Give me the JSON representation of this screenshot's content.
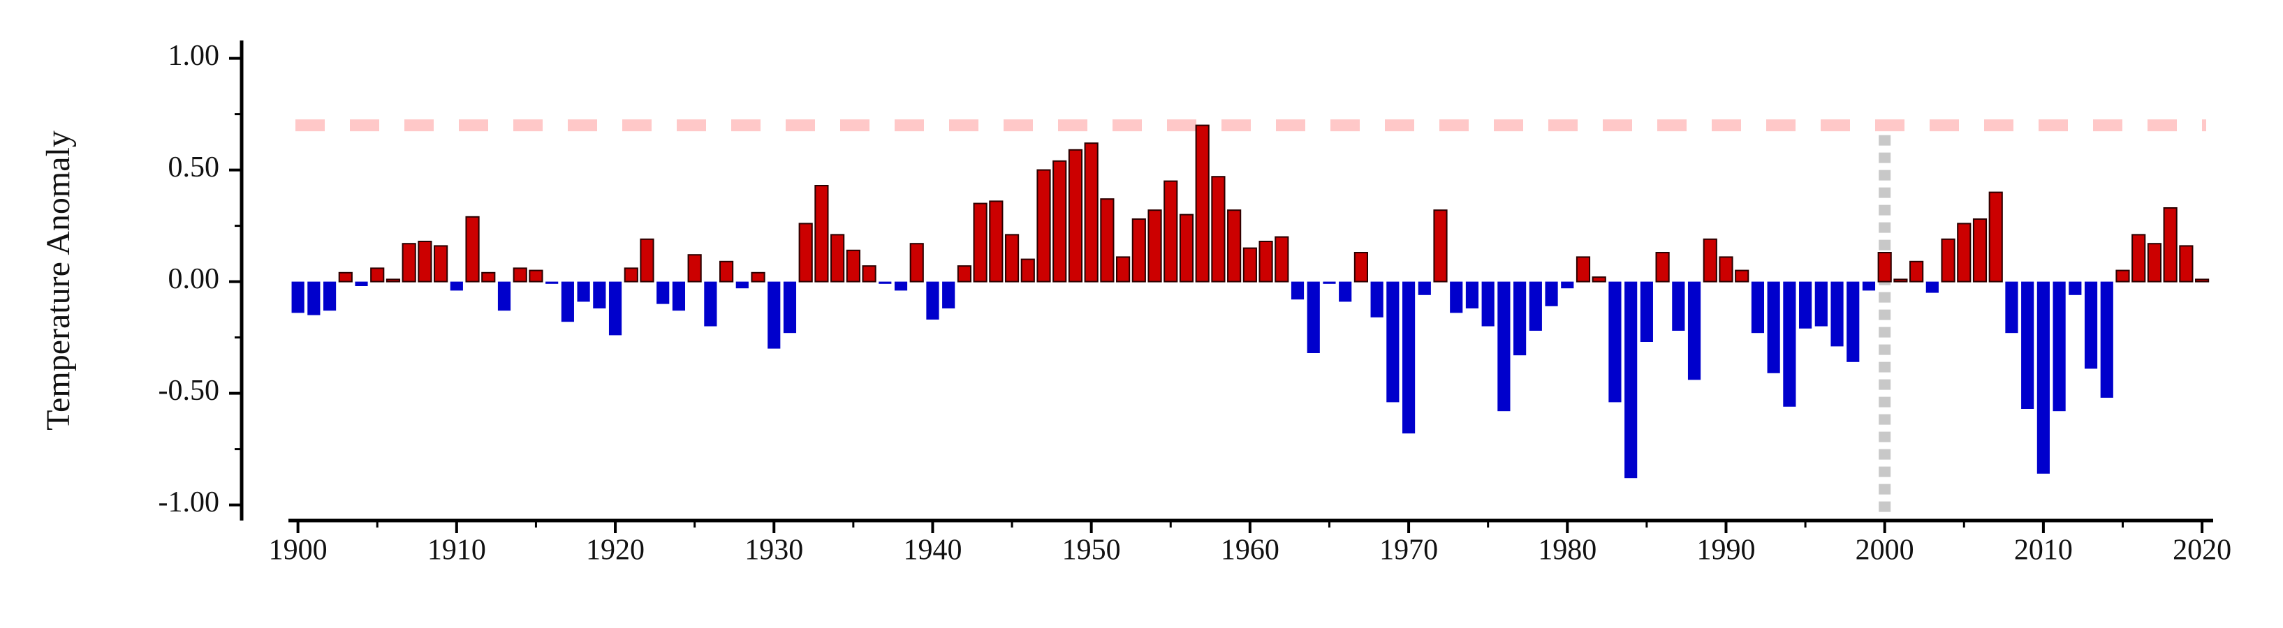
{
  "chart_data": {
    "type": "bar",
    "ylabel": "Temperature Anomaly",
    "x": [
      1900,
      1901,
      1902,
      1903,
      1904,
      1905,
      1906,
      1907,
      1908,
      1909,
      1910,
      1911,
      1912,
      1913,
      1914,
      1915,
      1916,
      1917,
      1918,
      1919,
      1920,
      1921,
      1922,
      1923,
      1924,
      1925,
      1926,
      1927,
      1928,
      1929,
      1930,
      1931,
      1932,
      1933,
      1934,
      1935,
      1936,
      1937,
      1938,
      1939,
      1940,
      1941,
      1942,
      1943,
      1944,
      1945,
      1946,
      1947,
      1948,
      1949,
      1950,
      1951,
      1952,
      1953,
      1954,
      1955,
      1956,
      1957,
      1958,
      1959,
      1960,
      1961,
      1962,
      1963,
      1964,
      1965,
      1966,
      1967,
      1968,
      1969,
      1970,
      1971,
      1972,
      1973,
      1974,
      1975,
      1976,
      1977,
      1978,
      1979,
      1980,
      1981,
      1982,
      1983,
      1984,
      1985,
      1986,
      1987,
      1988,
      1989,
      1990,
      1991,
      1992,
      1993,
      1994,
      1995,
      1996,
      1997,
      1998,
      1999,
      2000,
      2001,
      2002,
      2003,
      2004,
      2005,
      2006,
      2007,
      2008,
      2009,
      2010,
      2011,
      2012,
      2013,
      2014,
      2015,
      2016,
      2017,
      2018,
      2019,
      2020
    ],
    "values": [
      -0.14,
      -0.15,
      -0.13,
      0.04,
      -0.02,
      0.06,
      0.01,
      0.17,
      0.18,
      0.16,
      -0.04,
      0.29,
      0.04,
      -0.13,
      0.06,
      0.05,
      -0.01,
      -0.18,
      -0.09,
      -0.12,
      -0.24,
      0.06,
      0.19,
      -0.1,
      -0.13,
      0.12,
      -0.2,
      0.09,
      -0.03,
      0.04,
      -0.3,
      -0.23,
      0.26,
      0.43,
      0.21,
      0.14,
      0.07,
      -0.01,
      -0.04,
      0.17,
      -0.17,
      -0.12,
      0.07,
      0.35,
      0.36,
      0.21,
      0.1,
      0.5,
      0.54,
      0.59,
      0.62,
      0.37,
      0.11,
      0.28,
      0.32,
      0.45,
      0.3,
      0.7,
      0.47,
      0.32,
      0.15,
      0.18,
      0.2,
      -0.08,
      -0.32,
      -0.01,
      -0.09,
      0.13,
      -0.16,
      -0.54,
      -0.68,
      -0.06,
      0.32,
      -0.14,
      -0.12,
      -0.2,
      -0.58,
      -0.33,
      -0.22,
      -0.11,
      -0.03,
      0.11,
      0.02,
      -0.54,
      -0.88,
      -0.27,
      0.13,
      -0.22,
      -0.44,
      0.19,
      0.11,
      0.05,
      -0.23,
      -0.41,
      -0.56,
      -0.21,
      -0.2,
      -0.29,
      -0.36,
      -0.04,
      0.13,
      0.01,
      0.09,
      -0.05,
      0.19,
      0.26,
      0.28,
      0.4,
      -0.23,
      -0.57,
      -0.86,
      -0.58,
      -0.06,
      -0.39,
      -0.52,
      0.05,
      0.21,
      0.17,
      0.33,
      0.16,
      0.01
    ],
    "colors": {
      "positive": "#cc0000",
      "negative": "#0000cc"
    },
    "xlim": [
      1899.4,
      2020.7
    ],
    "xticks": [
      1900,
      1910,
      1920,
      1930,
      1940,
      1950,
      1960,
      1970,
      1980,
      1990,
      2000,
      2010,
      2020
    ],
    "xminor_ticks": [
      1905,
      1915,
      1925,
      1935,
      1945,
      1955,
      1965,
      1975,
      1985,
      1995,
      2005,
      2015
    ],
    "ylim": [
      -1.07,
      1.08
    ],
    "yticks": [
      {
        "value": -1,
        "label": "-1.00"
      },
      {
        "value": -0.5,
        "label": "-0.50"
      },
      {
        "value": 0,
        "label": "0.00"
      },
      {
        "value": 0.5,
        "label": "0.50"
      },
      {
        "value": 1,
        "label": "1.00"
      }
    ],
    "yminor_ticks": [
      -0.75,
      -0.25,
      0.25,
      0.75
    ],
    "hline": {
      "value": 0.7,
      "color": "#ffc8c8"
    },
    "vline": {
      "value": 2000,
      "color": "#c8c8c8"
    }
  }
}
